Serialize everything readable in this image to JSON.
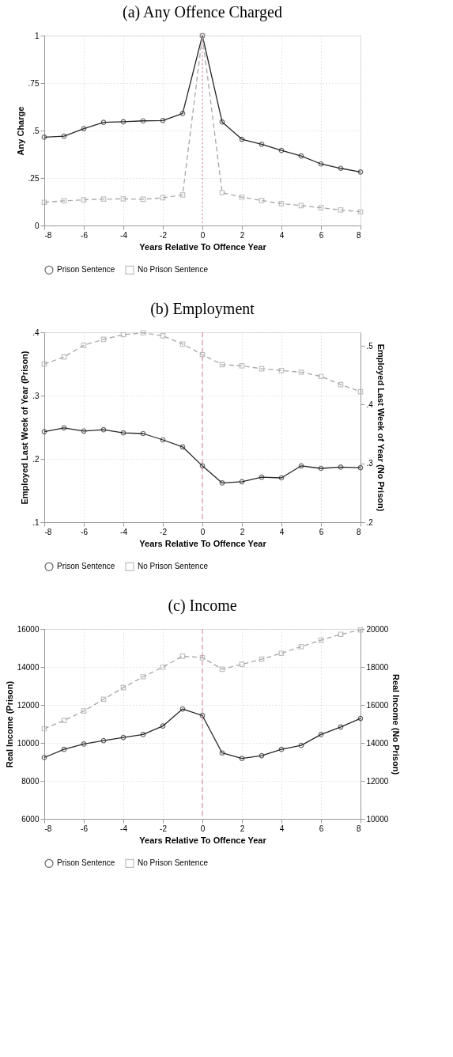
{
  "chart_data": [
    {
      "type": "line",
      "title": "(a)  Any Offence Charged",
      "xlabel": "Years Relative To Offence Year",
      "ylabel": "Any Charge",
      "x": [
        -8,
        -7,
        -6,
        -5,
        -4,
        -3,
        -2,
        -1,
        0,
        1,
        2,
        3,
        4,
        5,
        6,
        7,
        8
      ],
      "xlim": [
        -8,
        8
      ],
      "xticks": [
        -8,
        -6,
        -4,
        -2,
        0,
        2,
        4,
        6,
        8
      ],
      "ylim": [
        0,
        1
      ],
      "yticks": [
        0,
        {
          "value": 0.25,
          "label": ".25"
        },
        {
          "value": 0.5,
          "label": ".5"
        },
        {
          "value": 0.75,
          "label": ".75"
        },
        1
      ],
      "grid": true,
      "legend": "bottom",
      "ref_lines": [
        {
          "axis": "x",
          "value": 0,
          "color": "#d67aa8",
          "line_style": "dotted"
        }
      ],
      "series": [
        {
          "name": "Prison Sentence",
          "color": "#262626",
          "marker": "circle",
          "line_style": "solid",
          "values": [
            0.465,
            0.47,
            0.51,
            0.543,
            0.546,
            0.551,
            0.553,
            0.59,
            1.0,
            0.545,
            0.454,
            0.428,
            0.395,
            0.366,
            0.324,
            0.301,
            0.282
          ]
        },
        {
          "name": "No Prison Sentence",
          "color": "#a6a6a6",
          "marker": "square",
          "line_style": "dashed",
          "values": [
            0.122,
            0.13,
            0.135,
            0.139,
            0.14,
            0.138,
            0.146,
            0.161,
            1.0,
            0.173,
            0.149,
            0.132,
            0.115,
            0.105,
            0.093,
            0.082,
            0.072
          ]
        }
      ]
    },
    {
      "type": "line",
      "title": "(b)  Employment",
      "xlabel": "Years Relative To Offence Year",
      "ylabel": "Employed Last Week of Year (Prison)",
      "y2label": "Employed Last Week of Year (No Prison)",
      "x": [
        -8,
        -7,
        -6,
        -5,
        -4,
        -3,
        -2,
        -1,
        0,
        1,
        2,
        3,
        4,
        5,
        6,
        7,
        8
      ],
      "xlim": [
        -8,
        8
      ],
      "xticks": [
        -8,
        -6,
        -4,
        -2,
        0,
        2,
        4,
        6,
        8
      ],
      "ylim": [
        0.1,
        0.4
      ],
      "yticks": [
        {
          "value": 0.1,
          "label": ".1"
        },
        {
          "value": 0.2,
          "label": ".2"
        },
        {
          "value": 0.3,
          "label": ".3"
        },
        {
          "value": 0.4,
          "label": ".4"
        }
      ],
      "y2lim": [
        0.2,
        0.523
      ],
      "y2ticks": [
        {
          "value": 0.2,
          "label": ".2"
        },
        {
          "value": 0.3,
          "label": ".3"
        },
        {
          "value": 0.4,
          "label": ".4"
        },
        {
          "value": 0.5,
          "label": ".5"
        }
      ],
      "grid": true,
      "legend": "bottom",
      "ref_lines": [
        {
          "axis": "x",
          "value": 0,
          "color": "#d67aa8",
          "line_style": "dashed"
        }
      ],
      "series": [
        {
          "name": "Prison Sentence",
          "color": "#262626",
          "marker": "circle",
          "line_style": "solid",
          "values": [
            0.243,
            0.249,
            0.244,
            0.246,
            0.241,
            0.24,
            0.23,
            0.219,
            0.189,
            0.162,
            0.164,
            0.171,
            0.17,
            0.189,
            0.185,
            0.187,
            0.186
          ]
        },
        {
          "name": "No Prison Sentence",
          "color": "#a6a6a6",
          "marker": "square",
          "line_style": "dashed",
          "axis": "y2",
          "values": [
            0.469,
            0.481,
            0.501,
            0.511,
            0.519,
            0.522,
            0.517,
            0.503,
            0.485,
            0.468,
            0.466,
            0.461,
            0.458,
            0.455,
            0.448,
            0.434,
            0.422
          ]
        }
      ]
    },
    {
      "type": "line",
      "title": "(c)  Income",
      "xlabel": "Years Relative To Offence Year",
      "ylabel": "Real Income (Prison)",
      "y2label": "Real Income (No Prison)",
      "x": [
        -8,
        -7,
        -6,
        -5,
        -4,
        -3,
        -2,
        -1,
        0,
        1,
        2,
        3,
        4,
        5,
        6,
        7,
        8
      ],
      "xlim": [
        -8,
        8
      ],
      "xticks": [
        -8,
        -6,
        -4,
        -2,
        0,
        2,
        4,
        6,
        8
      ],
      "ylim": [
        6000,
        16000
      ],
      "yticks": [
        6000,
        8000,
        10000,
        12000,
        14000,
        16000
      ],
      "y2lim": [
        10000,
        20000
      ],
      "y2ticks": [
        10000,
        12000,
        14000,
        16000,
        18000,
        20000
      ],
      "grid": true,
      "legend": "bottom",
      "ref_lines": [
        {
          "axis": "x",
          "value": 0,
          "color": "#d67aa8",
          "line_style": "dashed"
        }
      ],
      "series": [
        {
          "name": "Prison Sentence",
          "color": "#262626",
          "marker": "circle",
          "line_style": "solid",
          "values": [
            9230,
            9660,
            9940,
            10120,
            10290,
            10440,
            10890,
            11790,
            11440,
            9470,
            9180,
            9330,
            9660,
            9870,
            10440,
            10840,
            11290
          ]
        },
        {
          "name": "No Prison Sentence",
          "color": "#a6a6a6",
          "marker": "square",
          "line_style": "dashed",
          "axis": "y2",
          "values": [
            14750,
            15180,
            15680,
            16300,
            16910,
            17480,
            17990,
            18570,
            18490,
            17880,
            18140,
            18410,
            18720,
            19070,
            19410,
            19720,
            19950
          ]
        }
      ]
    }
  ]
}
